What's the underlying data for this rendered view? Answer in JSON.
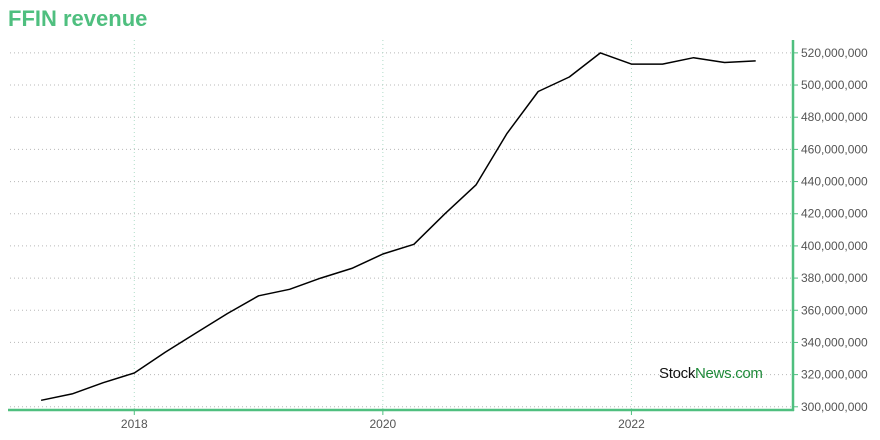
{
  "chart_data": {
    "type": "line",
    "title": "FFIN revenue",
    "xlabel": "",
    "ylabel": "",
    "x_ticks": [
      2018,
      2020,
      2022
    ],
    "y_ticks": [
      300000000,
      320000000,
      340000000,
      360000000,
      380000000,
      400000000,
      420000000,
      440000000,
      460000000,
      480000000,
      500000000,
      520000000
    ],
    "y_tick_labels": [
      "300,000,000",
      "320,000,000",
      "340,000,000",
      "360,000,000",
      "380,000,000",
      "400,000,000",
      "420,000,000",
      "440,000,000",
      "460,000,000",
      "480,000,000",
      "500,000,000",
      "520,000,000"
    ],
    "xlim": [
      2017.0,
      2023.3
    ],
    "ylim": [
      298000000,
      528000000
    ],
    "grid": true,
    "y_axis_position": "right",
    "line_color": "#000000",
    "axis_color": "#4fbf7f",
    "series": [
      {
        "x": [
          2017.25,
          2017.5,
          2017.75,
          2018.0,
          2018.25,
          2018.5,
          2018.75,
          2019.0,
          2019.25,
          2019.5,
          2019.75,
          2020.0,
          2020.25,
          2020.5,
          2020.75,
          2021.0,
          2021.25,
          2021.5,
          2021.75,
          2022.0,
          2022.25,
          2022.5,
          2022.75,
          2023.0
        ],
        "y": [
          304000000,
          308000000,
          315000000,
          321000000,
          334000000,
          346000000,
          358000000,
          369000000,
          373000000,
          380000000,
          386000000,
          395000000,
          401000000,
          420000000,
          438000000,
          470000000,
          496000000,
          505000000,
          520000000,
          513000000,
          513000000,
          517000000,
          514000000,
          515000000
        ]
      }
    ]
  },
  "watermark": {
    "part1": "Stock",
    "part2": "News.com"
  }
}
